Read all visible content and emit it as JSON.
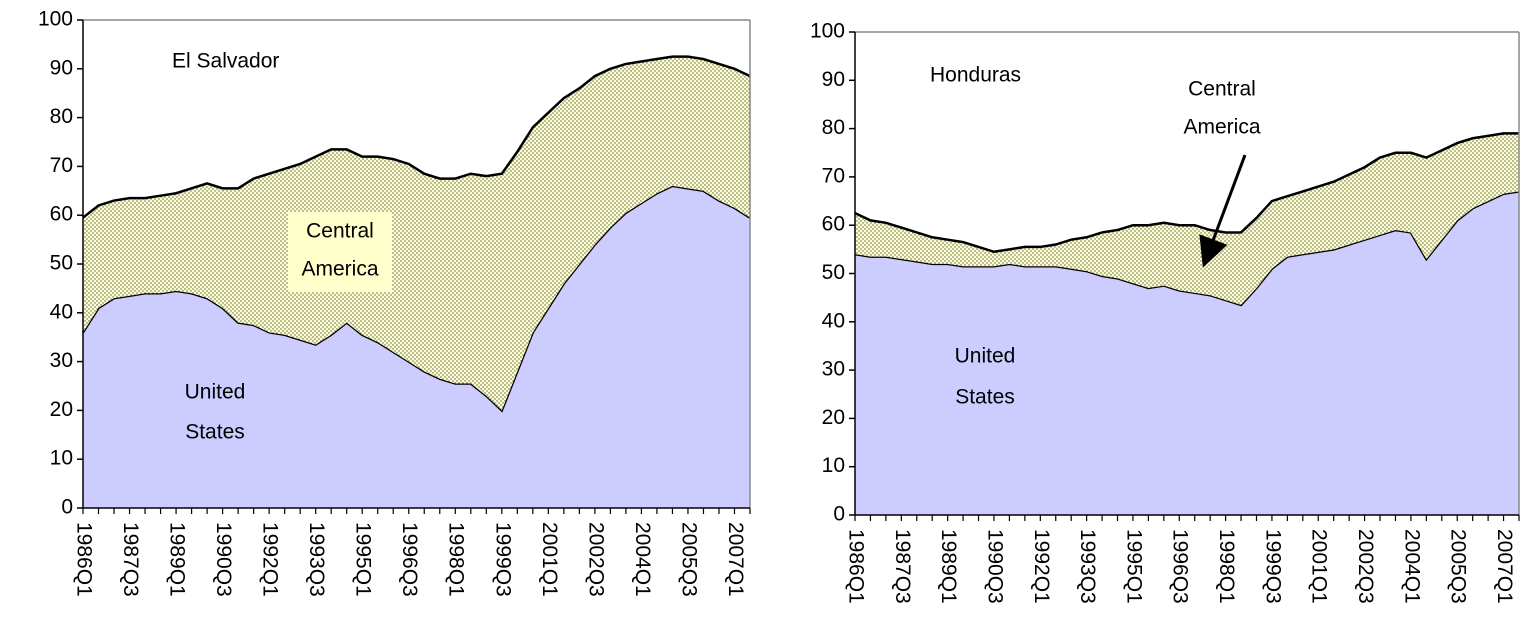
{
  "chart_data": [
    {
      "type": "stacked_area",
      "categories": [
        "1986Q1",
        null,
        null,
        "1987Q3",
        null,
        null,
        "1989Q1",
        null,
        null,
        "1990Q3",
        null,
        null,
        "1992Q1",
        null,
        null,
        "1993Q3",
        null,
        null,
        "1995Q1",
        null,
        null,
        "1996Q3",
        null,
        null,
        "1998Q1",
        null,
        null,
        "1999Q3",
        null,
        null,
        "2001Q1",
        null,
        null,
        "2002Q3",
        null,
        null,
        "2004Q1",
        null,
        null,
        "2005Q3",
        null,
        null,
        "2007Q1",
        null
      ],
      "series": [
        {
          "name": "United States",
          "color": "#ccccff",
          "values": [
            36,
            41,
            43,
            43.5,
            44,
            44,
            44.5,
            44,
            43,
            41,
            38,
            37.5,
            36,
            35.5,
            34.5,
            33.5,
            35.5,
            38,
            35.5,
            34,
            32,
            30,
            28,
            26.5,
            25.5,
            25.5,
            23,
            20,
            28,
            36,
            41,
            46,
            50,
            54,
            57.5,
            60.5,
            62.5,
            64.5,
            66,
            65.5,
            65,
            63,
            61.5,
            59.5
          ]
        },
        {
          "name": "Central America",
          "color": "#ffffcc",
          "values": [
            23.5,
            21,
            20,
            20,
            19.5,
            20,
            20,
            21.5,
            23.5,
            24.5,
            27.5,
            30,
            32.5,
            34,
            36,
            38.5,
            38,
            35.5,
            36.5,
            38,
            39.5,
            40.5,
            40.5,
            41,
            42,
            43,
            45,
            48.5,
            45,
            42,
            40,
            38,
            36,
            34.5,
            32.5,
            30.5,
            29,
            27.5,
            26.5,
            27,
            27,
            28,
            28.5,
            29
          ]
        }
      ],
      "annotations": [
        [
          "El Salvador"
        ],
        [
          "Central",
          "America"
        ],
        [
          "United",
          "States"
        ]
      ],
      "ylim": [
        0,
        100
      ],
      "yticks": [
        0,
        10,
        20,
        30,
        40,
        50,
        60,
        70,
        80,
        90,
        100
      ]
    },
    {
      "type": "stacked_area",
      "categories": [
        "1986Q1",
        null,
        null,
        "1987Q3",
        null,
        null,
        "1989Q1",
        null,
        null,
        "1990Q3",
        null,
        null,
        "1992Q1",
        null,
        null,
        "1993Q3",
        null,
        null,
        "1995Q1",
        null,
        null,
        "1996Q3",
        null,
        null,
        "1998Q1",
        null,
        null,
        "1999Q3",
        null,
        null,
        "2001Q1",
        null,
        null,
        "2002Q3",
        null,
        null,
        "2004Q1",
        null,
        null,
        "2005Q3",
        null,
        null,
        "2007Q1",
        null
      ],
      "series": [
        {
          "name": "United States",
          "color": "#ccccff",
          "values": [
            54,
            53.5,
            53.5,
            53,
            52.5,
            52,
            52,
            51.5,
            51.5,
            51.5,
            52,
            51.5,
            51.5,
            51.5,
            51,
            50.5,
            49.5,
            49,
            48,
            47,
            47.5,
            46.5,
            46,
            45.5,
            44.5,
            43.5,
            47,
            51,
            53.5,
            54,
            54.5,
            55,
            56,
            57,
            58,
            59,
            58.5,
            53,
            57,
            61,
            63.5,
            65,
            66.5,
            67
          ]
        },
        {
          "name": "Central America",
          "color": "#ffffcc",
          "values": [
            8.5,
            7.5,
            7,
            6.5,
            6,
            5.5,
            5,
            5,
            4,
            3,
            3,
            4,
            4,
            4.5,
            6,
            7,
            9,
            10,
            12,
            13,
            13,
            13.5,
            14,
            13.5,
            14,
            15,
            14.5,
            14,
            12.5,
            13,
            13.5,
            14,
            14.5,
            15,
            16,
            16,
            16.5,
            21,
            18.5,
            16,
            14.5,
            13.5,
            12.5,
            12
          ]
        }
      ],
      "annotations": [
        [
          "Honduras"
        ],
        [
          "Central",
          "America"
        ],
        [
          "United",
          "States"
        ]
      ],
      "ylim": [
        0,
        100
      ],
      "yticks": [
        0,
        10,
        20,
        30,
        40,
        50,
        60,
        70,
        80,
        90,
        100
      ]
    }
  ]
}
